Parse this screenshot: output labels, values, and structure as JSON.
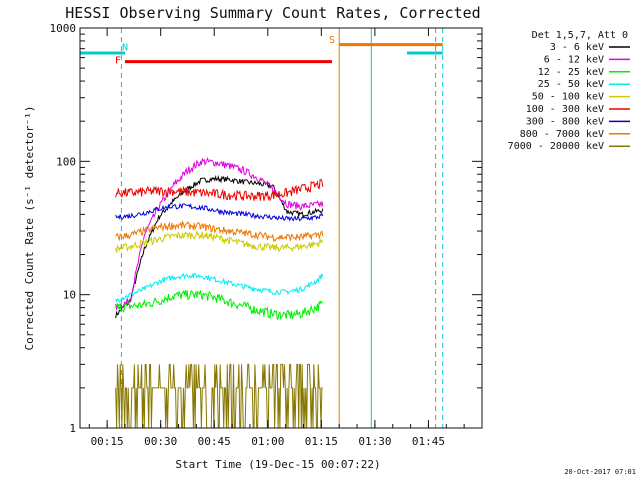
{
  "chart_data": {
    "type": "line",
    "title": "HESSI Observing Summary Count Rates, Corrected",
    "xlabel": "Start Time (19-Dec-15 00:07:22)",
    "ylabel": "Corrected Count Rate (s⁻¹ detector⁻¹)",
    "y_scale": "log",
    "ylim": [
      1,
      1000
    ],
    "xlim_minutes": [
      0,
      112.6
    ],
    "x_ticks": [
      {
        "label": "00:15",
        "minutes": 7.6
      },
      {
        "label": "00:30",
        "minutes": 22.6
      },
      {
        "label": "00:45",
        "minutes": 37.6
      },
      {
        "label": "01:00",
        "minutes": 52.6
      },
      {
        "label": "01:15",
        "minutes": 67.6
      },
      {
        "label": "01:30",
        "minutes": 82.6
      },
      {
        "label": "01:45",
        "minutes": 97.6
      }
    ],
    "y_ticks": [
      {
        "label": "1",
        "value": 1
      },
      {
        "label": "10",
        "value": 10
      },
      {
        "label": "100",
        "value": 100
      },
      {
        "label": "1000",
        "value": 1000
      }
    ],
    "legend_title": "Det 1,5,7, Att 0",
    "legend_position": "right",
    "series": [
      {
        "name": "3 - 6 keV",
        "color": "#000000",
        "t": [
          10,
          14,
          18,
          22,
          26,
          30,
          34,
          38,
          42,
          46,
          50,
          54,
          58,
          62,
          66,
          68
        ],
        "v": [
          7,
          9,
          22,
          38,
          50,
          62,
          72,
          74,
          73,
          70,
          68,
          65,
          42,
          40,
          42,
          43
        ]
      },
      {
        "name": "6 - 12 keV",
        "color": "#e000e0",
        "t": [
          10,
          14,
          18,
          22,
          26,
          30,
          34,
          38,
          42,
          46,
          50,
          54,
          58,
          62,
          66,
          68
        ],
        "v": [
          8,
          9,
          28,
          45,
          65,
          85,
          100,
          98,
          92,
          85,
          75,
          62,
          48,
          46,
          47,
          48
        ]
      },
      {
        "name": "12 - 25 keV",
        "color": "#00ee00",
        "t": [
          10,
          14,
          18,
          22,
          26,
          30,
          34,
          38,
          42,
          46,
          50,
          54,
          58,
          62,
          66,
          68
        ],
        "v": [
          8,
          8.2,
          8.4,
          9,
          9.8,
          10,
          10,
          9.5,
          8.8,
          8.2,
          7.6,
          7.2,
          7,
          7.2,
          8,
          8.5
        ]
      },
      {
        "name": "25 - 50 keV",
        "color": "#00eeee",
        "t": [
          10,
          14,
          18,
          22,
          26,
          30,
          34,
          38,
          42,
          46,
          50,
          54,
          58,
          62,
          66,
          68
        ],
        "v": [
          9,
          10,
          11,
          12.5,
          13.5,
          14,
          13.8,
          13,
          12.2,
          11.5,
          11,
          10.5,
          10.5,
          11,
          12.5,
          14
        ]
      },
      {
        "name": "50 - 100 keV",
        "color": "#cccc00",
        "t": [
          10,
          14,
          18,
          22,
          26,
          30,
          34,
          38,
          42,
          46,
          50,
          54,
          58,
          62,
          66,
          68
        ],
        "v": [
          22,
          23,
          24.5,
          26,
          27.5,
          28,
          28,
          27,
          25.5,
          24,
          23,
          22.5,
          22.5,
          23,
          24,
          25
        ]
      },
      {
        "name": "100 - 300 keV",
        "color": "#ee0000",
        "t": [
          10,
          14,
          18,
          22,
          26,
          30,
          34,
          38,
          42,
          46,
          50,
          54,
          58,
          62,
          66,
          68
        ],
        "v": [
          58,
          58,
          59,
          60,
          60,
          59,
          58,
          57,
          56,
          55,
          55,
          56,
          58,
          62,
          66,
          68
        ]
      },
      {
        "name": "300 - 800 keV",
        "color": "#0000dd",
        "t": [
          10,
          14,
          18,
          22,
          26,
          30,
          34,
          38,
          42,
          46,
          50,
          54,
          58,
          62,
          66,
          68
        ],
        "v": [
          38,
          39,
          41,
          44,
          46,
          46,
          45,
          43,
          41,
          40,
          39,
          38,
          37,
          37,
          38,
          39
        ]
      },
      {
        "name": "800 - 7000 keV",
        "color": "#ee7700",
        "t": [
          10,
          14,
          18,
          22,
          26,
          30,
          34,
          38,
          42,
          46,
          50,
          54,
          58,
          62,
          66,
          68
        ],
        "v": [
          27,
          28,
          30,
          32,
          33,
          33,
          32.5,
          31,
          30,
          29,
          28,
          27,
          27,
          27,
          28,
          29
        ]
      },
      {
        "name": "7000 - 20000 keV",
        "color": "#887700",
        "t": [
          10,
          14,
          18,
          22,
          26,
          30,
          34,
          38,
          42,
          46,
          50,
          54,
          58,
          62,
          66,
          68
        ],
        "v": [
          1.5,
          1.6,
          2.5,
          2.2,
          2,
          2.4,
          2.2,
          2,
          2,
          1.8,
          1.9,
          2,
          1.8,
          1.8,
          2,
          2
        ]
      }
    ],
    "flags": [
      {
        "label": "N",
        "color": "#00cccc",
        "label_minutes": 12.6,
        "label_value": 680,
        "bars": [
          {
            "from": 0,
            "to": 12.6,
            "value": 650
          },
          {
            "from": 91.6,
            "to": 101.6,
            "value": 650
          }
        ],
        "lines": [
          {
            "minutes": 0,
            "style": "solid"
          },
          {
            "minutes": 11.6,
            "style": "dashed"
          },
          {
            "minutes": 81.6,
            "style": "solid"
          },
          {
            "minutes": 101.6,
            "style": "dashed"
          }
        ]
      },
      {
        "label": "F",
        "color": "#ee0000",
        "label_minutes": 10.6,
        "label_value": 540,
        "bars": [
          {
            "from": 12.6,
            "to": 70.6,
            "value": 560
          }
        ],
        "lines": []
      },
      {
        "label": "S",
        "color": "#ee7700",
        "label_minutes": 70.6,
        "label_value": 770,
        "bars": [
          {
            "from": 72.6,
            "to": 101.6,
            "value": 750
          }
        ],
        "lines": [
          {
            "minutes": 72.6,
            "style": "solid"
          },
          {
            "minutes": 99.6,
            "style": "dashed"
          }
        ]
      }
    ]
  },
  "footer": {
    "timestamp": "20-Oct-2017 07:01"
  }
}
